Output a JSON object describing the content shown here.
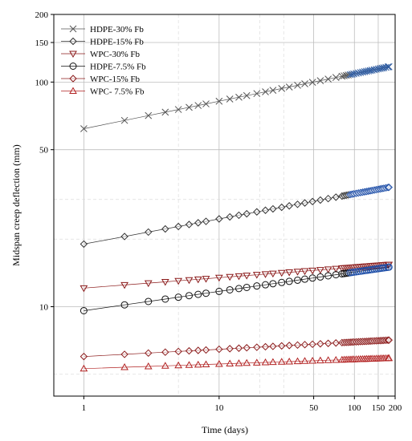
{
  "chart_data": {
    "type": "scatter",
    "title": "",
    "xlabel": "Time (days)",
    "ylabel": "Midspan creep deflection (mm)",
    "x_scale": "log",
    "y_scale": "log",
    "xlim": [
      0.6,
      200
    ],
    "ylim": [
      4,
      200
    ],
    "x_ticks": [
      1,
      10,
      50,
      100,
      150,
      200
    ],
    "x_tick_labels": [
      "1",
      "10",
      "50",
      "100",
      "150",
      "200"
    ],
    "y_ticks": [
      10,
      50,
      100,
      150,
      200
    ],
    "y_tick_labels": [
      "10",
      "50",
      "100",
      "150",
      "200"
    ],
    "grid": true,
    "legend_position": "top-left",
    "series": [
      {
        "name": "HDPE-30% Fb",
        "marker": "x",
        "color": "#555555",
        "y_at_1": 62,
        "y_at_180": 117
      },
      {
        "name": "HDPE-15% Fb",
        "marker": "diamond",
        "color": "#333333",
        "y_at_1": 19,
        "y_at_180": 34
      },
      {
        "name": "WPC-30% Fb",
        "marker": "triangle-down",
        "color": "#8b1a1a",
        "y_at_1": 12.1,
        "y_at_180": 15.4
      },
      {
        "name": "HDPE-7.5% Fb",
        "marker": "circle",
        "color": "#111111",
        "y_at_1": 9.6,
        "y_at_180": 15.0
      },
      {
        "name": "WPC-15% Fb",
        "marker": "diamond",
        "color": "#8b1a1a",
        "y_at_1": 6.0,
        "y_at_180": 7.1
      },
      {
        "name": "WPC- 7.5% Fb",
        "marker": "triangle-up",
        "color": "#b22222",
        "y_at_1": 5.3,
        "y_at_180": 5.9
      }
    ]
  }
}
